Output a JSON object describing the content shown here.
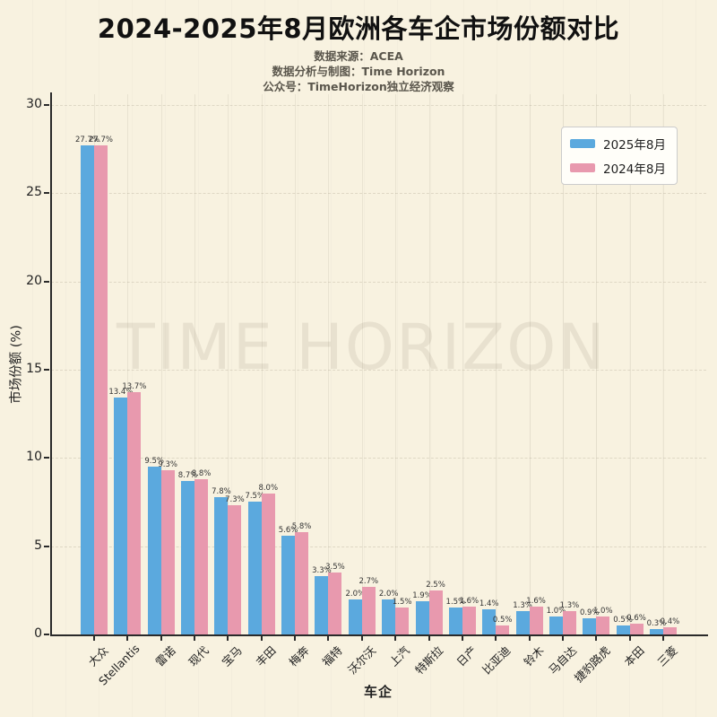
{
  "header": {
    "title": "2024-2025年8月欧洲各车企市场份额对比",
    "subtitles": [
      "数据来源：ACEA",
      "数据分析与制图：Time Horizon",
      "公众号：TimeHorizon独立经济观察"
    ]
  },
  "watermark": "TIME HORIZON",
  "legend": {
    "items": [
      {
        "label": "2025年8月",
        "color": "#5BA9DE"
      },
      {
        "label": "2024年8月",
        "color": "#E899AE"
      }
    ]
  },
  "colors": {
    "background": "#F8F2E0",
    "bar_2025": "#5BA9DE",
    "bar_2024": "#E899AE",
    "axis": "#2A2A2A"
  },
  "chart_data": {
    "type": "bar",
    "title": "2024-2025年8月欧洲各车企市场份额对比",
    "categories": [
      "大众",
      "Stellantis",
      "雷诺",
      "现代",
      "宝马",
      "丰田",
      "梅奔",
      "福特",
      "沃尔沃",
      "上汽",
      "特斯拉",
      "日产",
      "比亚迪",
      "铃木",
      "马自达",
      "捷豹路虎",
      "本田",
      "三菱"
    ],
    "series": [
      {
        "name": "2025年8月",
        "color": "#5BA9DE",
        "values": [
          27.7,
          13.4,
          9.5,
          8.7,
          7.8,
          7.5,
          5.6,
          3.3,
          2.0,
          2.0,
          1.9,
          1.5,
          1.4,
          1.3,
          1.0,
          0.9,
          0.5,
          0.3
        ]
      },
      {
        "name": "2024年8月",
        "color": "#E899AE",
        "values": [
          27.7,
          13.7,
          9.3,
          8.8,
          7.3,
          8.0,
          5.8,
          3.5,
          2.7,
          1.5,
          2.5,
          1.6,
          0.5,
          1.6,
          1.3,
          1.0,
          0.6,
          0.4
        ]
      }
    ],
    "xlabel": "车企",
    "ylabel": "市场份额 (%)",
    "ylim": [
      0,
      30.6
    ],
    "yticks": [
      0,
      5,
      10,
      15,
      20,
      25,
      30
    ],
    "grid": true,
    "legend_position": "upper right",
    "value_labels": true
  }
}
